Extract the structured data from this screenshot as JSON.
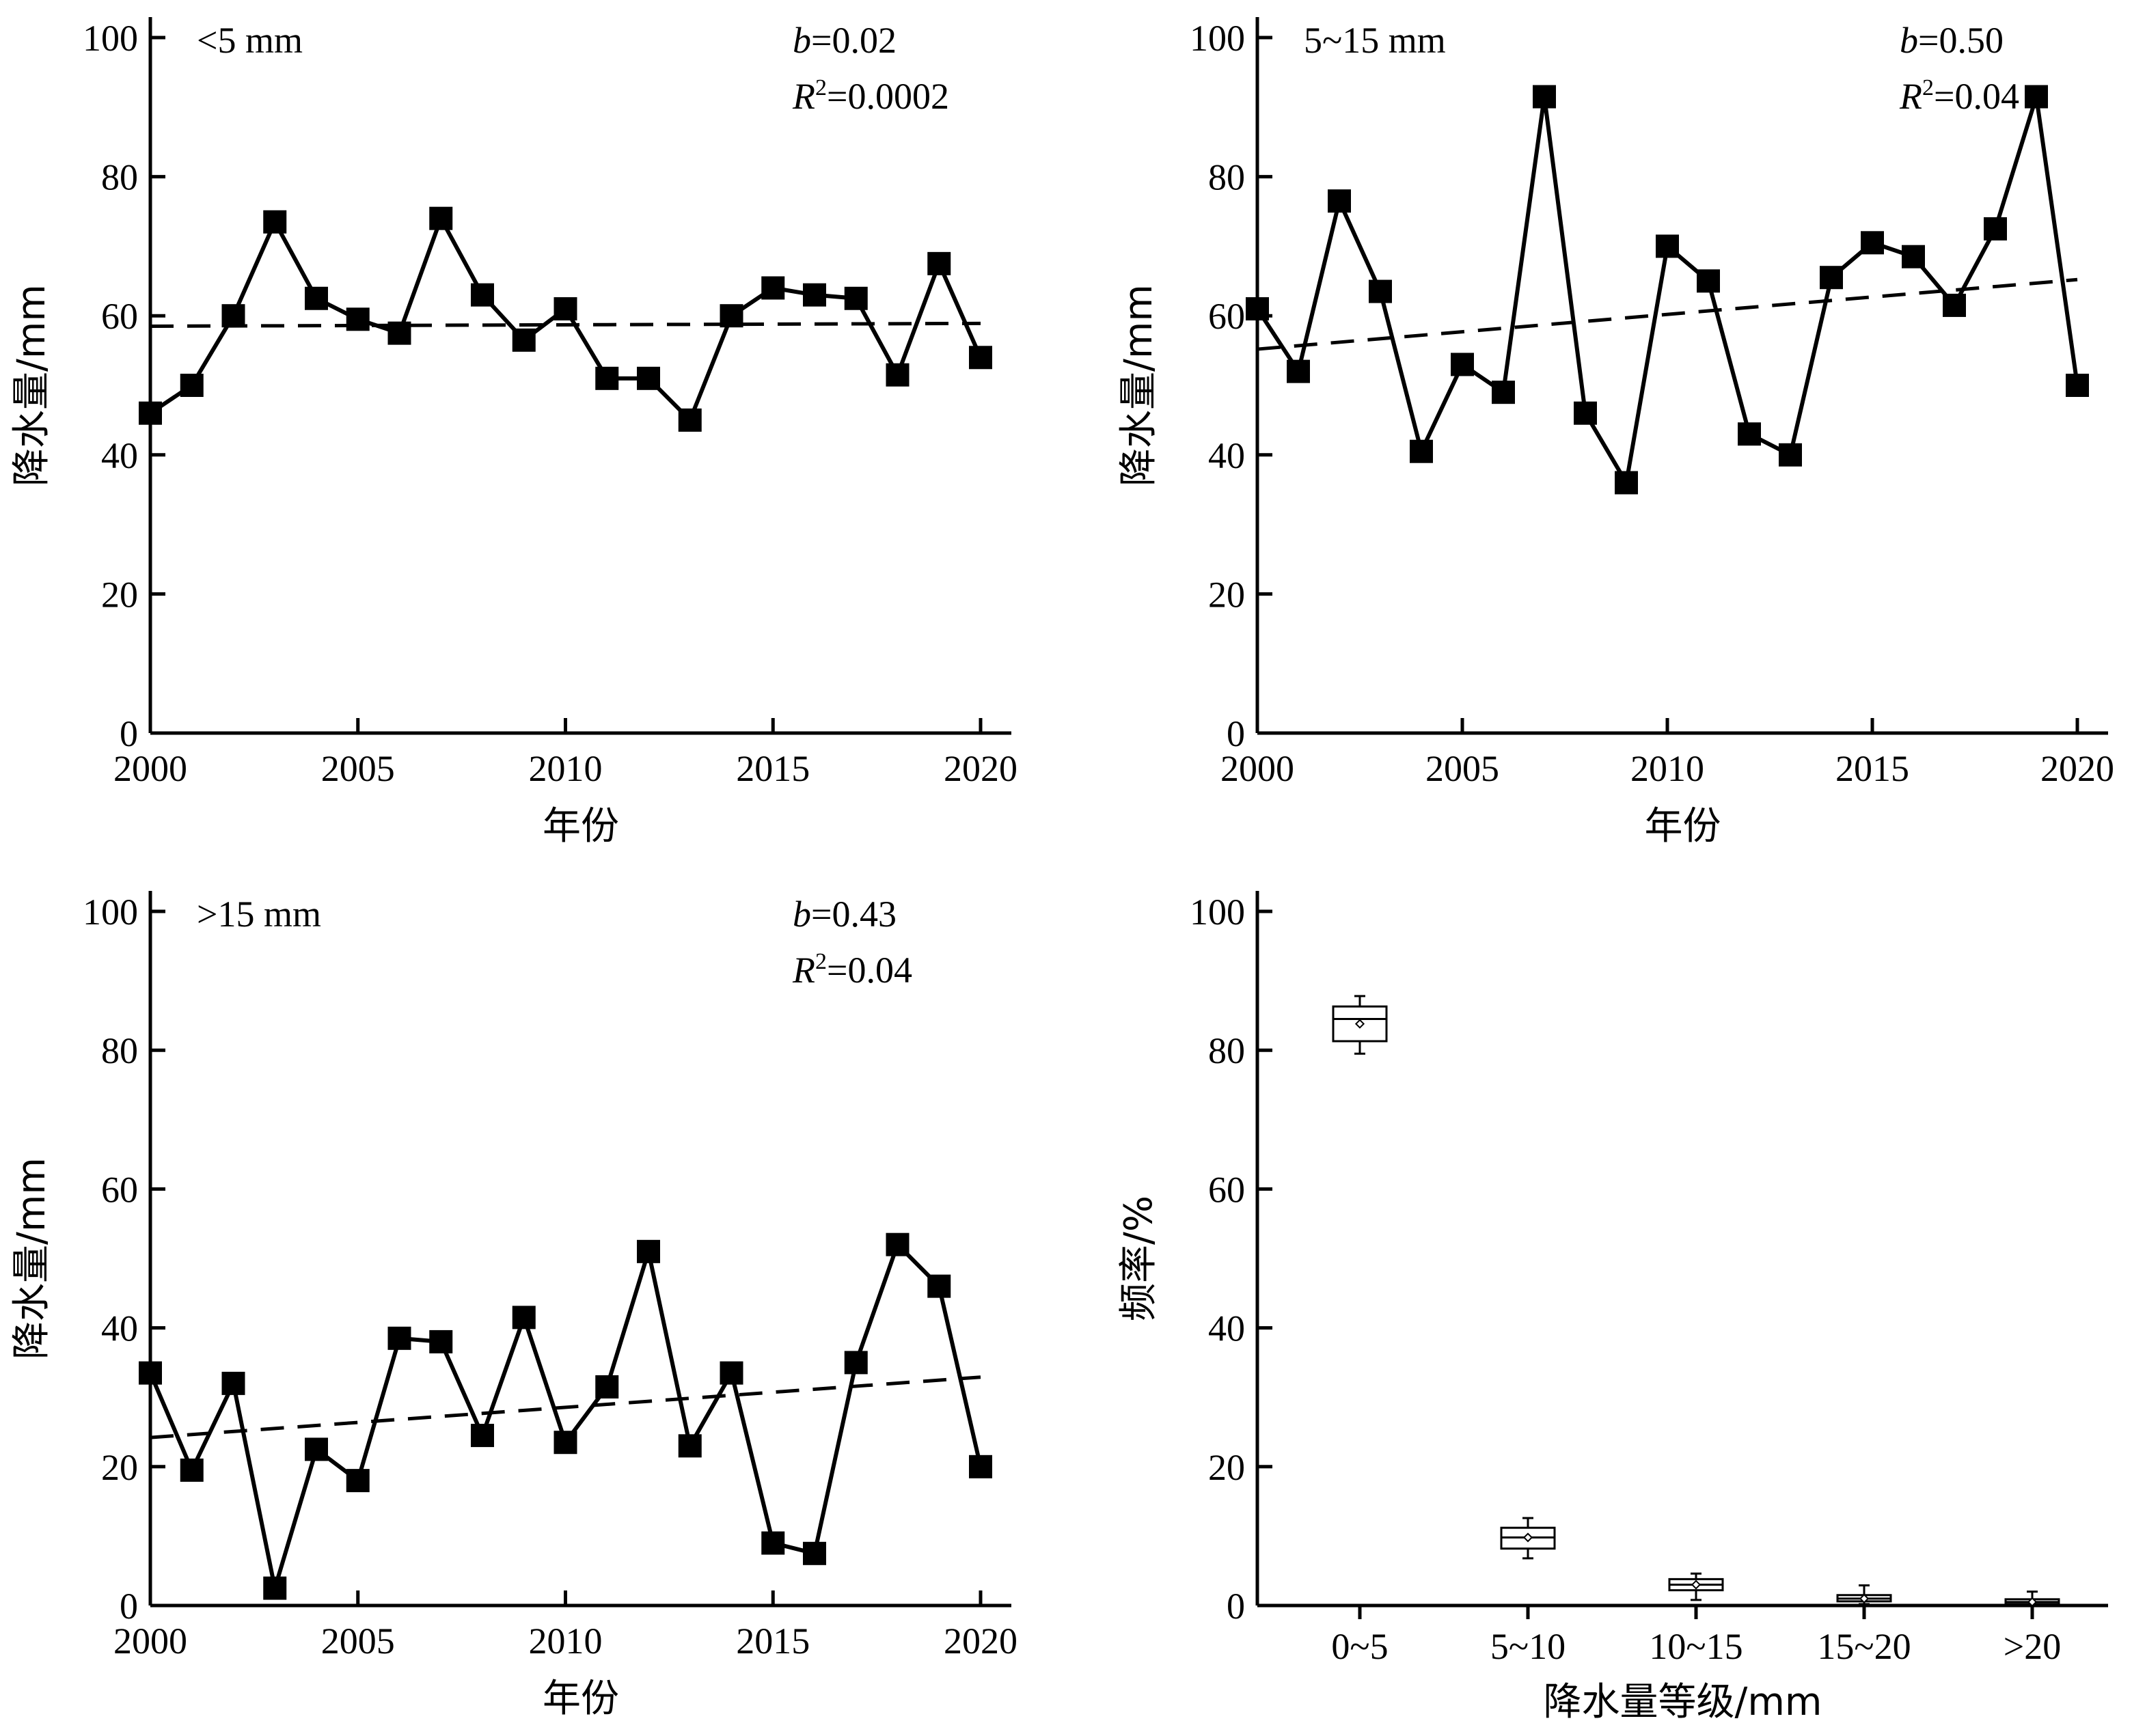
{
  "chart_data": [
    {
      "type": "line",
      "panel_label": "<5 mm",
      "stats": {
        "b": "0.02",
        "r2": "0.0002"
      },
      "x": [
        2000,
        2001,
        2002,
        2003,
        2004,
        2005,
        2006,
        2007,
        2008,
        2009,
        2010,
        2011,
        2012,
        2013,
        2014,
        2015,
        2016,
        2017,
        2018,
        2019,
        2020
      ],
      "values": [
        46,
        50,
        60,
        73.5,
        62.5,
        59.5,
        57.5,
        74,
        63,
        56.5,
        61,
        51,
        51,
        45,
        60,
        64,
        63,
        62.5,
        51.5,
        67.5,
        54
      ],
      "trend": {
        "start": 58.5,
        "end": 58.9
      },
      "xlabel": "年份",
      "ylabel": "降水量/mm",
      "xlim": [
        2000,
        2020
      ],
      "ylim": [
        0,
        100
      ],
      "xticks": [
        "2000",
        "2005",
        "2010",
        "2015",
        "2020"
      ],
      "yticks": [
        "0",
        "20",
        "40",
        "60",
        "80",
        "100"
      ]
    },
    {
      "type": "line",
      "panel_label": "5~15 mm",
      "stats": {
        "b": "0.50",
        "r2": "0.04"
      },
      "x": [
        2000,
        2001,
        2002,
        2003,
        2004,
        2005,
        2006,
        2007,
        2008,
        2009,
        2010,
        2011,
        2012,
        2013,
        2014,
        2015,
        2016,
        2017,
        2018,
        2019,
        2020
      ],
      "values": [
        61,
        52,
        76.5,
        63.5,
        40.5,
        53,
        49,
        91.5,
        46,
        36,
        70,
        65,
        43,
        40,
        65.5,
        70.5,
        68.5,
        61.5,
        72.5,
        91.5,
        50
      ],
      "trend": {
        "start": 55.2,
        "end": 65.2
      },
      "xlabel": "年份",
      "ylabel": "降水量/mm",
      "xlim": [
        2000,
        2020
      ],
      "ylim": [
        0,
        100
      ],
      "xticks": [
        "2000",
        "2005",
        "2010",
        "2015",
        "2020"
      ],
      "yticks": [
        "0",
        "20",
        "40",
        "60",
        "80",
        "100"
      ]
    },
    {
      "type": "line",
      "panel_label": ">15 mm",
      "stats": {
        "b": "0.43",
        "r2": "0.04"
      },
      "x": [
        2000,
        2001,
        2002,
        2003,
        2004,
        2005,
        2006,
        2007,
        2008,
        2009,
        2010,
        2011,
        2012,
        2013,
        2014,
        2015,
        2016,
        2017,
        2018,
        2019,
        2020
      ],
      "values": [
        33.5,
        19.5,
        32,
        2.5,
        22.5,
        18,
        38.5,
        38,
        24.5,
        41.5,
        23.5,
        31.5,
        51,
        23,
        33.5,
        9,
        7.5,
        35,
        52,
        46,
        20
      ],
      "trend": {
        "start": 24.2,
        "end": 32.9
      },
      "xlabel": "年份",
      "ylabel": "降水量/mm",
      "xlim": [
        2000,
        2020
      ],
      "ylim": [
        0,
        100
      ],
      "xticks": [
        "2000",
        "2005",
        "2010",
        "2015",
        "2020"
      ],
      "yticks": [
        "0",
        "20",
        "40",
        "60",
        "80",
        "100"
      ]
    },
    {
      "type": "box",
      "categories": [
        "0~5",
        "5~10",
        "10~15",
        "15~20",
        ">20"
      ],
      "boxes": [
        {
          "whisker_low": 79.5,
          "q1": 81.3,
          "median": 84.5,
          "q3": 86.3,
          "whisker_high": 87.8,
          "mean": 83.8
        },
        {
          "whisker_low": 6.8,
          "q1": 8.2,
          "median": 9.8,
          "q3": 11.2,
          "whisker_high": 12.6,
          "mean": 9.8
        },
        {
          "whisker_low": 0.8,
          "q1": 2.2,
          "median": 3.0,
          "q3": 3.8,
          "whisker_high": 4.6,
          "mean": 3.0
        },
        {
          "whisker_low": 0.2,
          "q1": 0.6,
          "median": 1.0,
          "q3": 1.5,
          "whisker_high": 2.9,
          "mean": 1.0
        },
        {
          "whisker_low": 0.0,
          "q1": 0.2,
          "median": 0.5,
          "q3": 0.9,
          "whisker_high": 2.0,
          "mean": 0.5
        }
      ],
      "xlabel": "降水量等级/mm",
      "ylabel": "频率/%",
      "ylim": [
        0,
        100
      ],
      "yticks": [
        "0",
        "20",
        "40",
        "60",
        "80",
        "100"
      ]
    }
  ]
}
